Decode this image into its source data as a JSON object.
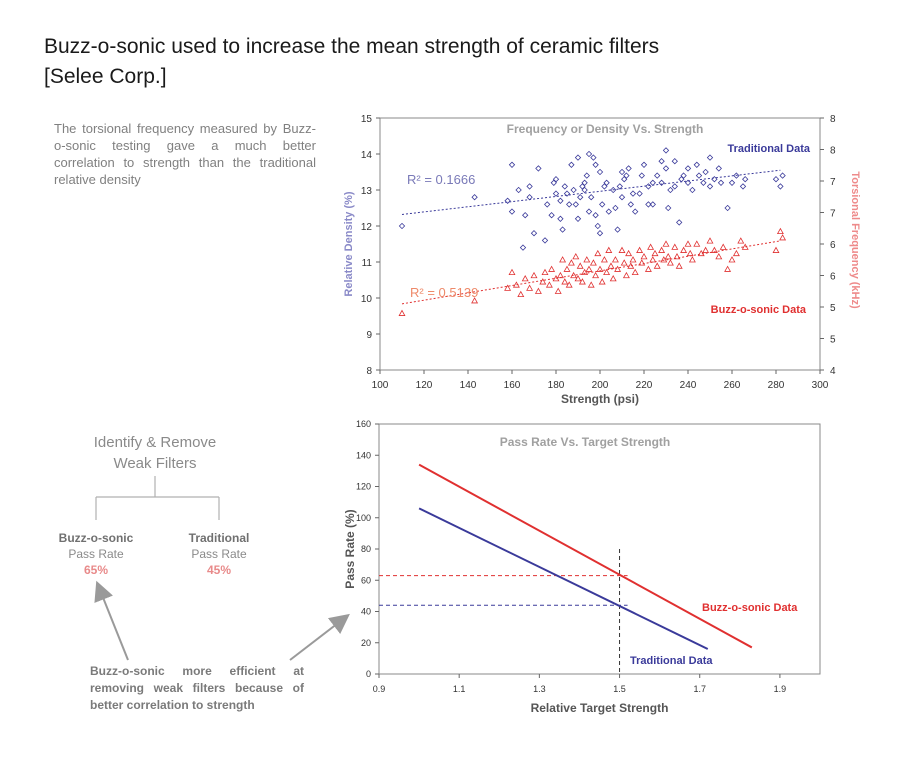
{
  "title_line1": "Buzz-o-sonic used to increase the mean strength of ceramic filters",
  "title_line2": "[Selee Corp.]",
  "intro_text": "The torsional frequency measured by Buzz-o-sonic testing gave a much better correlation to strength than the traditional relative density",
  "tree": {
    "title_line1": "Identify & Remove",
    "title_line2": "Weak Filters",
    "left": {
      "name": "Buzz-o-sonic",
      "sub": "Pass Rate",
      "value": "65%"
    },
    "right": {
      "name": "Traditional",
      "sub": "Pass Rate",
      "value": "45%"
    }
  },
  "note_text": "Buzz-o-sonic more efficient at removing weak filters because of better correlation to strength",
  "colors": {
    "blue": "#3a3a9a",
    "red": "#e03030",
    "rlabel_blue": "#7a7ab8",
    "rlabel_red": "#ee8a6a",
    "gray": "#9a9a9a"
  },
  "chart_data": [
    {
      "type": "scatter",
      "title": "Frequency or Density Vs. Strength",
      "xlabel": "Strength (psi)",
      "ylabel": "Relative Density (%)",
      "y2label": "Torsional Frequency (kHz)",
      "xlim": [
        100,
        300
      ],
      "ylim": [
        8,
        15
      ],
      "y2lim": [
        4,
        8
      ],
      "xticks": [
        "100",
        "120",
        "140",
        "160",
        "180",
        "200",
        "220",
        "240",
        "260",
        "280",
        "300"
      ],
      "xtick_values": [
        100,
        120,
        140,
        160,
        180,
        200,
        220,
        240,
        260,
        280,
        300
      ],
      "yticks": [
        "8",
        "9",
        "10",
        "11",
        "12",
        "13",
        "14",
        "15"
      ],
      "ytick_values": [
        8,
        9,
        10,
        11,
        12,
        13,
        14,
        15
      ],
      "y2ticks": [
        "4",
        "5",
        "5",
        "6",
        "6",
        "7",
        "7",
        "8",
        "8"
      ],
      "y2tick_values": [
        4,
        4.5,
        5,
        5.5,
        6,
        6.5,
        7,
        7.5,
        8
      ],
      "series": [
        {
          "name": "Traditional Data",
          "marker": "diamond",
          "axis": "left",
          "r2_label": "R² = 0.1666",
          "trend": [
            [
              110,
              12.32
            ],
            [
              282,
              13.55
            ]
          ],
          "points": [
            [
              110,
              12.0
            ],
            [
              143,
              12.8
            ],
            [
              158,
              12.7
            ],
            [
              160,
              13.7
            ],
            [
              160,
              12.4
            ],
            [
              163,
              13.0
            ],
            [
              165,
              11.4
            ],
            [
              166,
              12.3
            ],
            [
              168,
              13.1
            ],
            [
              168,
              12.8
            ],
            [
              170,
              11.8
            ],
            [
              172,
              13.6
            ],
            [
              175,
              11.6
            ],
            [
              176,
              12.6
            ],
            [
              178,
              12.3
            ],
            [
              179,
              13.2
            ],
            [
              180,
              12.9
            ],
            [
              180,
              13.3
            ],
            [
              182,
              12.2
            ],
            [
              182,
              12.7
            ],
            [
              183,
              11.9
            ],
            [
              184,
              13.1
            ],
            [
              185,
              12.9
            ],
            [
              186,
              12.6
            ],
            [
              187,
              13.7
            ],
            [
              188,
              13.0
            ],
            [
              189,
              12.6
            ],
            [
              190,
              13.9
            ],
            [
              190,
              12.2
            ],
            [
              191,
              12.8
            ],
            [
              192,
              13.1
            ],
            [
              193,
              13.0
            ],
            [
              193,
              13.2
            ],
            [
              194,
              13.4
            ],
            [
              195,
              12.4
            ],
            [
              195,
              14.0
            ],
            [
              196,
              12.8
            ],
            [
              197,
              13.9
            ],
            [
              198,
              13.7
            ],
            [
              198,
              12.3
            ],
            [
              199,
              12.0
            ],
            [
              200,
              13.5
            ],
            [
              200,
              11.8
            ],
            [
              201,
              12.6
            ],
            [
              202,
              13.1
            ],
            [
              203,
              13.2
            ],
            [
              204,
              12.4
            ],
            [
              206,
              13.0
            ],
            [
              207,
              12.5
            ],
            [
              208,
              11.9
            ],
            [
              209,
              13.1
            ],
            [
              210,
              13.5
            ],
            [
              210,
              12.8
            ],
            [
              211,
              13.3
            ],
            [
              212,
              13.4
            ],
            [
              213,
              13.6
            ],
            [
              214,
              12.6
            ],
            [
              215,
              12.9
            ],
            [
              216,
              12.4
            ],
            [
              218,
              12.9
            ],
            [
              219,
              13.4
            ],
            [
              220,
              13.7
            ],
            [
              222,
              12.6
            ],
            [
              222,
              13.1
            ],
            [
              224,
              13.2
            ],
            [
              224,
              12.6
            ],
            [
              226,
              13.4
            ],
            [
              228,
              13.8
            ],
            [
              228,
              13.2
            ],
            [
              230,
              14.1
            ],
            [
              230,
              13.6
            ],
            [
              231,
              12.5
            ],
            [
              232,
              13.0
            ],
            [
              234,
              13.8
            ],
            [
              234,
              13.1
            ],
            [
              236,
              12.1
            ],
            [
              237,
              13.3
            ],
            [
              238,
              13.4
            ],
            [
              240,
              13.6
            ],
            [
              240,
              13.2
            ],
            [
              242,
              13.0
            ],
            [
              244,
              13.7
            ],
            [
              245,
              13.4
            ],
            [
              247,
              13.2
            ],
            [
              248,
              13.5
            ],
            [
              250,
              13.1
            ],
            [
              250,
              13.9
            ],
            [
              252,
              13.3
            ],
            [
              254,
              13.6
            ],
            [
              255,
              13.2
            ],
            [
              258,
              12.5
            ],
            [
              260,
              13.2
            ],
            [
              262,
              13.4
            ],
            [
              265,
              13.1
            ],
            [
              266,
              13.3
            ],
            [
              280,
              13.3
            ],
            [
              282,
              13.1
            ],
            [
              283,
              13.4
            ]
          ]
        },
        {
          "name": "Buzz-o-sonic Data",
          "marker": "triangle",
          "axis": "right",
          "r2_label": "R² = 0.5139",
          "trend": [
            [
              110,
              5.05
            ],
            [
              282,
              6.05
            ]
          ],
          "points": [
            [
              110,
              4.9
            ],
            [
              143,
              5.1
            ],
            [
              158,
              5.3
            ],
            [
              160,
              5.55
            ],
            [
              162,
              5.35
            ],
            [
              164,
              5.2
            ],
            [
              166,
              5.45
            ],
            [
              168,
              5.3
            ],
            [
              170,
              5.5
            ],
            [
              172,
              5.25
            ],
            [
              174,
              5.4
            ],
            [
              175,
              5.55
            ],
            [
              177,
              5.35
            ],
            [
              178,
              5.6
            ],
            [
              180,
              5.45
            ],
            [
              181,
              5.25
            ],
            [
              182,
              5.5
            ],
            [
              183,
              5.75
            ],
            [
              184,
              5.4
            ],
            [
              185,
              5.6
            ],
            [
              186,
              5.35
            ],
            [
              187,
              5.7
            ],
            [
              188,
              5.5
            ],
            [
              189,
              5.8
            ],
            [
              190,
              5.45
            ],
            [
              191,
              5.65
            ],
            [
              192,
              5.4
            ],
            [
              193,
              5.55
            ],
            [
              194,
              5.75
            ],
            [
              195,
              5.6
            ],
            [
              196,
              5.35
            ],
            [
              197,
              5.7
            ],
            [
              198,
              5.5
            ],
            [
              199,
              5.85
            ],
            [
              200,
              5.6
            ],
            [
              201,
              5.4
            ],
            [
              202,
              5.75
            ],
            [
              203,
              5.55
            ],
            [
              204,
              5.9
            ],
            [
              205,
              5.65
            ],
            [
              206,
              5.45
            ],
            [
              207,
              5.75
            ],
            [
              208,
              5.6
            ],
            [
              210,
              5.9
            ],
            [
              211,
              5.7
            ],
            [
              212,
              5.5
            ],
            [
              213,
              5.85
            ],
            [
              214,
              5.65
            ],
            [
              215,
              5.75
            ],
            [
              216,
              5.55
            ],
            [
              218,
              5.9
            ],
            [
              219,
              5.7
            ],
            [
              220,
              5.8
            ],
            [
              222,
              5.6
            ],
            [
              223,
              5.95
            ],
            [
              224,
              5.75
            ],
            [
              225,
              5.85
            ],
            [
              226,
              5.65
            ],
            [
              228,
              5.9
            ],
            [
              229,
              5.75
            ],
            [
              230,
              6.0
            ],
            [
              231,
              5.8
            ],
            [
              232,
              5.7
            ],
            [
              234,
              5.95
            ],
            [
              235,
              5.8
            ],
            [
              236,
              5.65
            ],
            [
              238,
              5.9
            ],
            [
              240,
              6.0
            ],
            [
              241,
              5.85
            ],
            [
              242,
              5.75
            ],
            [
              244,
              6.0
            ],
            [
              246,
              5.85
            ],
            [
              248,
              5.9
            ],
            [
              250,
              6.05
            ],
            [
              252,
              5.9
            ],
            [
              254,
              5.8
            ],
            [
              256,
              5.95
            ],
            [
              258,
              5.6
            ],
            [
              260,
              5.75
            ],
            [
              262,
              5.85
            ],
            [
              264,
              6.05
            ],
            [
              266,
              5.95
            ],
            [
              280,
              5.9
            ],
            [
              282,
              6.2
            ],
            [
              283,
              6.1
            ]
          ]
        }
      ]
    },
    {
      "type": "line",
      "title": "Pass Rate Vs. Target Strength",
      "xlabel": "Relative Target Strength",
      "ylabel": "Pass Rate (%)",
      "xlim": [
        0.9,
        2.0
      ],
      "ylim": [
        0,
        160
      ],
      "xticks": [
        "0.9",
        "1.1",
        "1.3",
        "1.5",
        "1.7",
        "1.9"
      ],
      "xtick_values": [
        0.9,
        1.1,
        1.3,
        1.5,
        1.7,
        1.9
      ],
      "yticks": [
        "0",
        "20",
        "40",
        "60",
        "80",
        "100",
        "120",
        "140",
        "160"
      ],
      "ytick_values": [
        0,
        20,
        40,
        60,
        80,
        100,
        120,
        140,
        160
      ],
      "series": [
        {
          "name": "Buzz-o-sonic Data",
          "x": [
            1.0,
            1.83
          ],
          "y": [
            134,
            17
          ]
        },
        {
          "name": "Traditional Data",
          "x": [
            1.0,
            1.72
          ],
          "y": [
            106,
            16
          ]
        }
      ],
      "annotations": {
        "vertical_line_x": 1.5,
        "horizontal_lines_y": [
          63,
          44
        ]
      }
    }
  ]
}
